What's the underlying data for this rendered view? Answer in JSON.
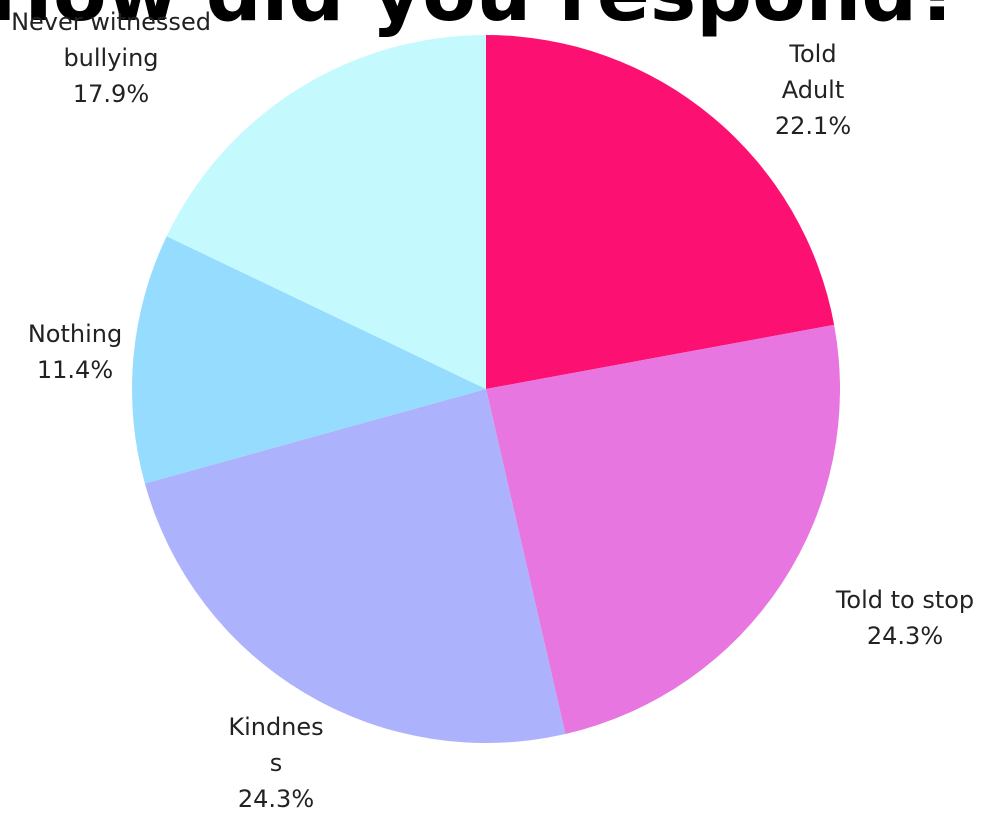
{
  "chart_data": {
    "type": "pie",
    "title": "How did you respond?",
    "slices": [
      {
        "label": [
          "Told",
          "Adult"
        ],
        "value": 22.1,
        "value_label": "22.1%",
        "color": "#FC1172"
      },
      {
        "label": [
          "Told to stop"
        ],
        "value": 24.3,
        "value_label": "24.3%",
        "color": "#E876E0"
      },
      {
        "label": [
          "Kindnes",
          "s"
        ],
        "value": 24.3,
        "value_label": "24.3%",
        "color": "#ADB2FD"
      },
      {
        "label": [
          "Nothing"
        ],
        "value": 11.4,
        "value_label": "11.4%",
        "color": "#96DCFE"
      },
      {
        "label": [
          "Never witnessed",
          "bullying"
        ],
        "value": 17.9,
        "value_label": "17.9%",
        "color": "#C4FAFE"
      }
    ],
    "start_angle_deg": 0,
    "direction": "clockwise"
  }
}
